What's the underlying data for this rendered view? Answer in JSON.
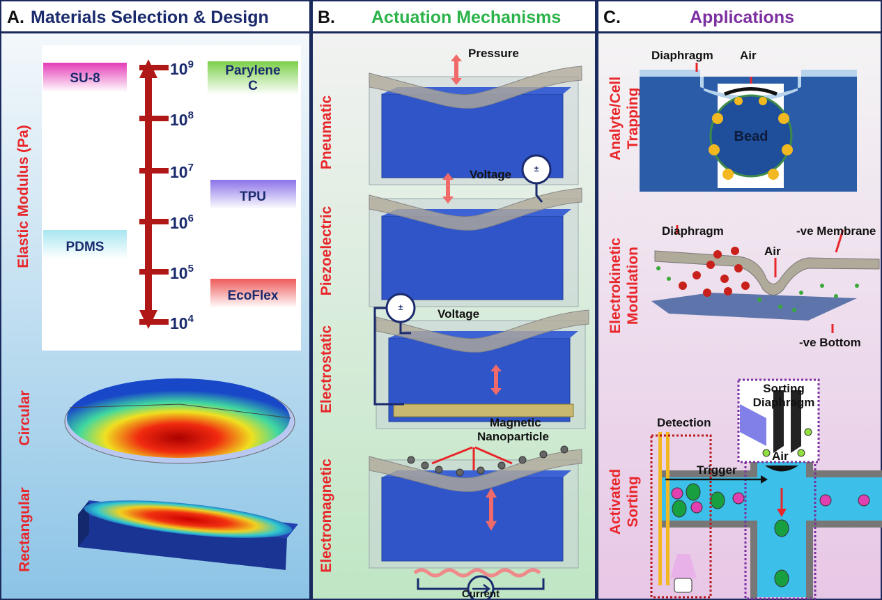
{
  "panel_a": {
    "letter": "A.",
    "title": "Materials Selection & Design",
    "axis_label": "Elastic Modulus (Pa)",
    "scale": [
      {
        "base": "10",
        "exponent": "9"
      },
      {
        "base": "10",
        "exponent": "8"
      },
      {
        "base": "10",
        "exponent": "7"
      },
      {
        "base": "10",
        "exponent": "6"
      },
      {
        "base": "10",
        "exponent": "5"
      },
      {
        "base": "10",
        "exponent": "4"
      }
    ],
    "materials": [
      [
        "SU-8"
      ],
      [
        "Parylene",
        "C"
      ],
      [
        "TPU"
      ],
      [
        "PDMS"
      ],
      [
        "EcoFlex"
      ]
    ],
    "shapes": [
      "Circular",
      "Rectangular"
    ]
  },
  "panel_b": {
    "letter": "B.",
    "title": "Actuation Mechanisms",
    "mechanisms": [
      "Pneumatic",
      "Piezoelectric",
      "Electrostatic",
      "Electromagnetic"
    ],
    "labels": {
      "pressure": "Pressure",
      "voltage_1": "Voltage",
      "plus_minus_1": "±",
      "voltage_2": "Voltage",
      "plus_minus_2": "±",
      "nanoparticle": [
        "Magnetic",
        "Nanoparticle"
      ],
      "current": "Current"
    }
  },
  "panel_c": {
    "letter": "C.",
    "title": "Applications",
    "applications": [
      [
        "Analyte/Cell",
        "Trapping"
      ],
      [
        "Electrokinetic",
        "Modulation"
      ],
      [
        "Activated",
        "Sorting"
      ]
    ],
    "trapping": {
      "diaphragm": "Diaphragm",
      "air": "Air",
      "bead": "Bead"
    },
    "modulation": {
      "diaphragm": "Diaphragm",
      "air": "Air",
      "membrane": "-ve Membrane",
      "bottom": "-ve Bottom"
    },
    "sorting": {
      "sorting_diaphragm": [
        "Sorting",
        "Diaphragm"
      ],
      "detection": "Detection",
      "trigger": "Trigger",
      "air": "Air"
    }
  }
}
